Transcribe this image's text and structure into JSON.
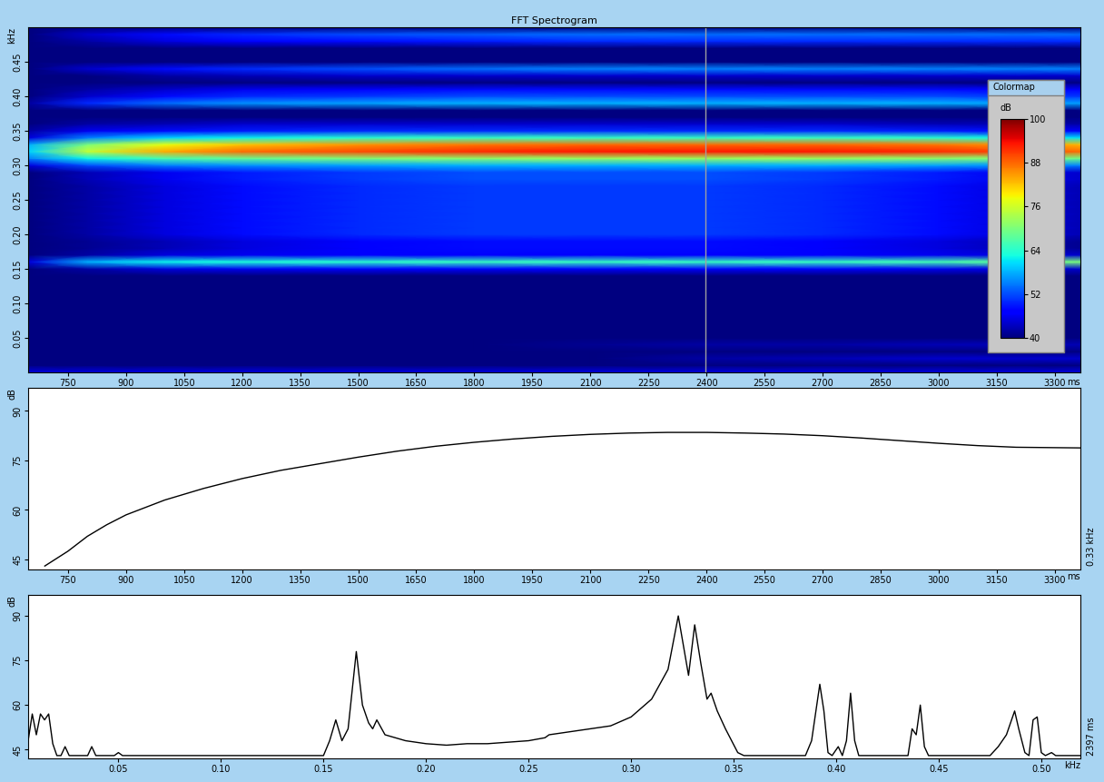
{
  "chart_data": [
    {
      "type": "heatmap",
      "title": "FFT Spectrogram",
      "xlabel": "ms",
      "ylabel": "kHz",
      "x": [
        650,
        800,
        1000,
        1200,
        1500,
        1800,
        2100,
        2400,
        2700,
        3000,
        3200,
        3366
      ],
      "y": [
        0.0,
        0.01,
        0.02,
        0.03,
        0.04,
        0.05,
        0.06,
        0.07,
        0.08,
        0.09,
        0.1,
        0.11,
        0.12,
        0.13,
        0.14,
        0.15,
        0.16,
        0.17,
        0.18,
        0.19,
        0.2,
        0.21,
        0.22,
        0.23,
        0.24,
        0.25,
        0.26,
        0.27,
        0.28,
        0.29,
        0.3,
        0.31,
        0.32,
        0.33,
        0.34,
        0.35,
        0.36,
        0.37,
        0.38,
        0.39,
        0.4,
        0.41,
        0.42,
        0.43,
        0.44,
        0.45,
        0.46,
        0.47,
        0.48,
        0.49,
        0.5
      ],
      "cells": [
        [
          45,
          45,
          45,
          45,
          45,
          45,
          45,
          45,
          45,
          45,
          45,
          45
        ],
        [
          40,
          40,
          40,
          40,
          40,
          40,
          40,
          40,
          40,
          40,
          40,
          40
        ],
        [
          40,
          40,
          40,
          40,
          40,
          40,
          40,
          42,
          43,
          44,
          44,
          44
        ],
        [
          40,
          40,
          40,
          40,
          40,
          40,
          40,
          40,
          40,
          40,
          40,
          40
        ],
        [
          40,
          40,
          40,
          40,
          40,
          40,
          41,
          42,
          42,
          43,
          43,
          43
        ],
        [
          40,
          40,
          40,
          40,
          40,
          40,
          40,
          40,
          40,
          40,
          40,
          40
        ],
        [
          40,
          40,
          40,
          40,
          40,
          40,
          40,
          40,
          40,
          40,
          40,
          40
        ],
        [
          40,
          40,
          40,
          40,
          40,
          40,
          40,
          40,
          40,
          40,
          40,
          40
        ],
        [
          40,
          40,
          40,
          40,
          40,
          40,
          40,
          40,
          40,
          40,
          40,
          40
        ],
        [
          40,
          40,
          40,
          40,
          40,
          40,
          40,
          40,
          40,
          40,
          40,
          40
        ],
        [
          40,
          40,
          40,
          40,
          40,
          40,
          40,
          40,
          40,
          40,
          40,
          40
        ],
        [
          40,
          40,
          40,
          40,
          40,
          40,
          40,
          40,
          40,
          40,
          40,
          40
        ],
        [
          40,
          40,
          40,
          40,
          40,
          40,
          40,
          40,
          40,
          40,
          40,
          40
        ],
        [
          40,
          40,
          40,
          40,
          40,
          40,
          40,
          40,
          40,
          40,
          40,
          40
        ],
        [
          40,
          40,
          40,
          40,
          40,
          40,
          40,
          40,
          40,
          40,
          40,
          40
        ],
        [
          40,
          42,
          45,
          46,
          47,
          47,
          47,
          47,
          47,
          46,
          45,
          44
        ],
        [
          45,
          58,
          62,
          63,
          64,
          65,
          65,
          65,
          65,
          66,
          68,
          70
        ],
        [
          40,
          42,
          45,
          46,
          47,
          47,
          47,
          47,
          47,
          46,
          45,
          44
        ],
        [
          40,
          41,
          43,
          45,
          47,
          48,
          48,
          48,
          47,
          45,
          43,
          41
        ],
        [
          40,
          41,
          43,
          45,
          47,
          48,
          48,
          48,
          47,
          45,
          43,
          41
        ],
        [
          40,
          42,
          45,
          48,
          50,
          51,
          51,
          51,
          50,
          48,
          45,
          43
        ],
        [
          40,
          42,
          45,
          48,
          50,
          51,
          51,
          51,
          50,
          48,
          45,
          43
        ],
        [
          40,
          42,
          45,
          48,
          50,
          51,
          51,
          51,
          50,
          48,
          45,
          43
        ],
        [
          40,
          42,
          45,
          48,
          50,
          51,
          51,
          51,
          50,
          48,
          45,
          43
        ],
        [
          40,
          42,
          45,
          48,
          50,
          51,
          51,
          51,
          50,
          48,
          45,
          43
        ],
        [
          40,
          42,
          45,
          48,
          50,
          51,
          51,
          51,
          50,
          48,
          45,
          43
        ],
        [
          40,
          42,
          45,
          48,
          50,
          51,
          51,
          51,
          50,
          48,
          45,
          43
        ],
        [
          40,
          42,
          45,
          48,
          50,
          51,
          51,
          51,
          50,
          48,
          45,
          43
        ],
        [
          40,
          43,
          46,
          49,
          51,
          52,
          52,
          52,
          51,
          49,
          46,
          44
        ],
        [
          40,
          43,
          46,
          49,
          51,
          52,
          52,
          52,
          51,
          49,
          46,
          44
        ],
        [
          45,
          52,
          55,
          56,
          57,
          58,
          58,
          58,
          58,
          57,
          56,
          55
        ],
        [
          55,
          62,
          66,
          68,
          70,
          71,
          72,
          72,
          72,
          71,
          70,
          69
        ],
        [
          60,
          75,
          84,
          88,
          90,
          92,
          93,
          93,
          93,
          92,
          90,
          88
        ],
        [
          58,
          70,
          78,
          82,
          85,
          87,
          88,
          88,
          88,
          87,
          85,
          83
        ],
        [
          45,
          55,
          60,
          62,
          64,
          65,
          65,
          65,
          65,
          64,
          62,
          61
        ],
        [
          42,
          46,
          48,
          49,
          50,
          50,
          50,
          50,
          50,
          49,
          48,
          47
        ],
        [
          40,
          42,
          43,
          44,
          44,
          44,
          44,
          44,
          44,
          43,
          43,
          42
        ],
        [
          40,
          40,
          40,
          40,
          40,
          40,
          40,
          40,
          40,
          40,
          40,
          40
        ],
        [
          40,
          40,
          40,
          40,
          40,
          40,
          40,
          40,
          40,
          40,
          40,
          40
        ],
        [
          42,
          50,
          54,
          56,
          57,
          58,
          58,
          58,
          58,
          58,
          57,
          57
        ],
        [
          40,
          44,
          48,
          50,
          51,
          52,
          52,
          52,
          52,
          52,
          51,
          51
        ],
        [
          40,
          42,
          44,
          46,
          47,
          48,
          48,
          48,
          48,
          48,
          47,
          47
        ],
        [
          40,
          40,
          40,
          40,
          40,
          40,
          40,
          40,
          40,
          40,
          40,
          40
        ],
        [
          40,
          40,
          42,
          43,
          44,
          44,
          44,
          44,
          44,
          44,
          44,
          44
        ],
        [
          40,
          44,
          48,
          50,
          52,
          54,
          55,
          55,
          55,
          55,
          55,
          55
        ],
        [
          40,
          40,
          40,
          40,
          40,
          40,
          40,
          40,
          40,
          40,
          40,
          40
        ],
        [
          40,
          40,
          40,
          40,
          40,
          40,
          40,
          40,
          40,
          40,
          40,
          40
        ],
        [
          40,
          40,
          40,
          40,
          40,
          40,
          40,
          40,
          40,
          40,
          40,
          40
        ],
        [
          40,
          42,
          45,
          47,
          48,
          49,
          50,
          50,
          50,
          50,
          50,
          50
        ],
        [
          40,
          44,
          48,
          50,
          52,
          53,
          54,
          54,
          54,
          54,
          54,
          54
        ],
        [
          40,
          40,
          40,
          40,
          40,
          40,
          40,
          40,
          40,
          40,
          40,
          40
        ]
      ],
      "xlim": [
        647,
        3366
      ],
      "ylim": [
        0,
        0.5
      ],
      "xticks": [
        750,
        900,
        1050,
        1200,
        1350,
        1500,
        1650,
        1800,
        1950,
        2100,
        2250,
        2400,
        2550,
        2700,
        2850,
        3000,
        3150,
        3300
      ],
      "yticks": [
        0.05,
        {
          "value": 0.1,
          "label": "0.10"
        },
        0.15,
        {
          "value": 0.2,
          "label": "0.20"
        },
        0.25,
        {
          "value": 0.3,
          "label": "0.30"
        },
        0.35,
        {
          "value": 0.4,
          "label": "0.40"
        },
        0.45
      ],
      "cursor": 2397,
      "colorbar": {
        "title": "Colormap",
        "label": "dB",
        "range": [
          40,
          100
        ],
        "ticks": [
          40,
          52,
          64,
          76,
          88,
          100
        ]
      }
    },
    {
      "type": "line",
      "xlabel": "ms",
      "ylabel": "dB",
      "annotation": "0.33 kHz",
      "color": "#000000",
      "x": [
        690,
        750,
        800,
        850,
        900,
        1000,
        1100,
        1200,
        1300,
        1400,
        1500,
        1600,
        1700,
        1800,
        1900,
        2000,
        2100,
        2200,
        2300,
        2400,
        2500,
        2600,
        2700,
        2800,
        2900,
        3000,
        3100,
        3200,
        3366
      ],
      "values": [
        43,
        47.5,
        52,
        55.5,
        58.5,
        63,
        66.5,
        69.5,
        72,
        74,
        76,
        77.8,
        79.3,
        80.5,
        81.5,
        82.3,
        82.9,
        83.3,
        83.5,
        83.5,
        83.3,
        83,
        82.5,
        81.8,
        81,
        80.2,
        79.5,
        79,
        78.8
      ],
      "xlim": [
        647,
        3366
      ],
      "ylim": [
        42,
        97
      ],
      "xticks": [
        750,
        900,
        1050,
        1200,
        1350,
        1500,
        1650,
        1800,
        1950,
        2100,
        2250,
        2400,
        2550,
        2700,
        2850,
        3000,
        3150,
        3300
      ],
      "yticks": [
        45,
        60,
        75,
        90
      ]
    },
    {
      "type": "line",
      "xlabel": "kHz",
      "ylabel": "dB",
      "annotation": "2397 ms",
      "color": "#000000",
      "x": [
        0.006,
        0.008,
        0.01,
        0.012,
        0.014,
        0.016,
        0.018,
        0.02,
        0.022,
        0.024,
        0.026,
        0.035,
        0.037,
        0.039,
        0.048,
        0.05,
        0.052,
        0.15,
        0.153,
        0.156,
        0.159,
        0.162,
        0.166,
        0.169,
        0.172,
        0.174,
        0.176,
        0.18,
        0.19,
        0.2,
        0.21,
        0.22,
        0.23,
        0.24,
        0.25,
        0.258,
        0.26,
        0.27,
        0.28,
        0.29,
        0.3,
        0.31,
        0.318,
        0.323,
        0.326,
        0.328,
        0.331,
        0.334,
        0.337,
        0.339,
        0.342,
        0.346,
        0.352,
        0.355,
        0.385,
        0.388,
        0.392,
        0.394,
        0.396,
        0.398,
        0.401,
        0.403,
        0.405,
        0.407,
        0.409,
        0.411,
        0.435,
        0.437,
        0.439,
        0.441,
        0.443,
        0.445,
        0.475,
        0.479,
        0.483,
        0.487,
        0.489,
        0.492,
        0.494,
        0.496,
        0.498,
        0.5,
        0.502,
        0.505,
        0.507,
        0.519
      ],
      "values": [
        48,
        57,
        50,
        57,
        55,
        57,
        47,
        43,
        43,
        46,
        43,
        43,
        46,
        43,
        43,
        44,
        43,
        43,
        48,
        55,
        48,
        52,
        78,
        60,
        54,
        52,
        55,
        50,
        48,
        47,
        46.5,
        47,
        47,
        47.5,
        48,
        49,
        50,
        51,
        52,
        53,
        56,
        62,
        72,
        90,
        78,
        70,
        87,
        74,
        62,
        64,
        58,
        52,
        44,
        43,
        43,
        48,
        67,
        58,
        44,
        43,
        46,
        43,
        48,
        64,
        48,
        43,
        43,
        52,
        50,
        60,
        46,
        43,
        43,
        46,
        50,
        58,
        52,
        44,
        43,
        55,
        56,
        44,
        43,
        44,
        43,
        43
      ],
      "xlim": [
        0.006,
        0.519
      ],
      "ylim": [
        42,
        97
      ],
      "xticks": [
        0.05,
        {
          "value": 0.1,
          "label": "0.10"
        },
        0.15,
        {
          "value": 0.2,
          "label": "0.20"
        },
        0.25,
        {
          "value": 0.3,
          "label": "0.30"
        },
        0.35,
        {
          "value": 0.4,
          "label": "0.40"
        },
        0.45,
        {
          "value": 0.5,
          "label": "0.50"
        }
      ],
      "yticks": [
        45,
        60,
        75,
        90
      ]
    }
  ]
}
